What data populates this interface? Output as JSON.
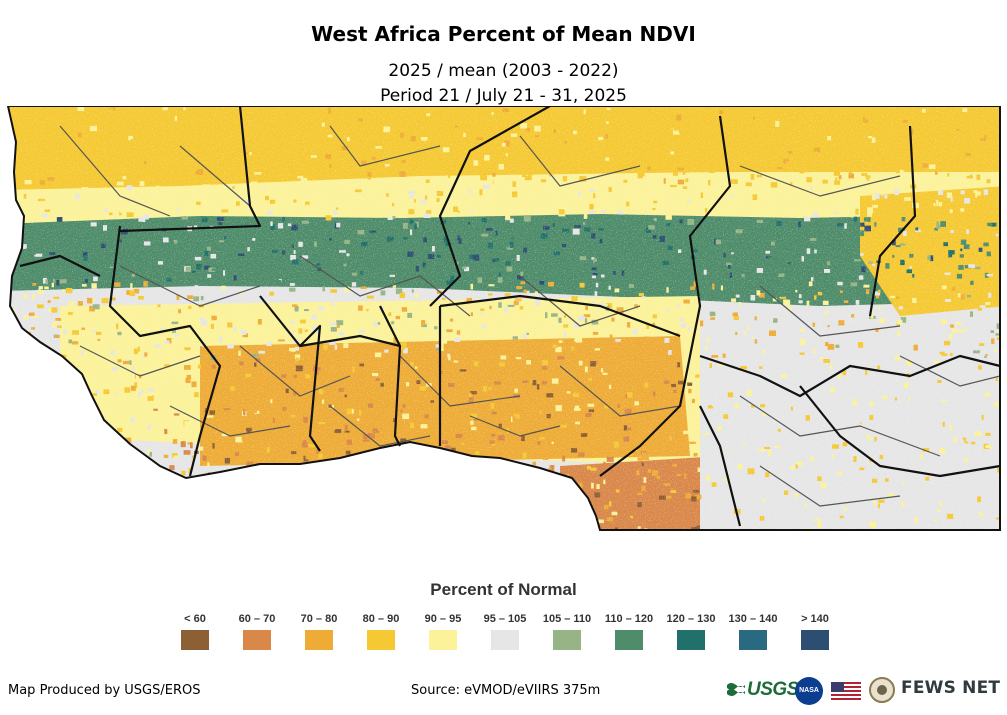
{
  "title": "West Africa Percent of Mean NDVI",
  "subtitle": "2025 / mean (2003 - 2022)",
  "period": "Period 21 / July 21 - 31, 2025",
  "legend": {
    "title": "Percent of Normal",
    "items": [
      {
        "label": "< 60",
        "color": "#8c5f35"
      },
      {
        "label": "60 – 70",
        "color": "#d9884a"
      },
      {
        "label": "70 – 80",
        "color": "#eeac37"
      },
      {
        "label": "80 – 90",
        "color": "#f5c933"
      },
      {
        "label": "90 – 95",
        "color": "#fbf29a"
      },
      {
        "label": "95 – 105",
        "color": "#e6e6e6"
      },
      {
        "label": "105 – 110",
        "color": "#96b486"
      },
      {
        "label": "110 – 120",
        "color": "#4e8c6a"
      },
      {
        "label": "120 – 130",
        "color": "#21706c"
      },
      {
        "label": "130 – 140",
        "color": "#2a6a80"
      },
      {
        "label": "> 140",
        "color": "#2e4d72"
      }
    ]
  },
  "footer": {
    "credit": "Map Produced by USGS/EROS",
    "source": "Source: eVMOD/eVIIRS 375m"
  },
  "logos": {
    "usgs": "USGS",
    "nasa": "NASA",
    "fews": "FEWS NET"
  }
}
